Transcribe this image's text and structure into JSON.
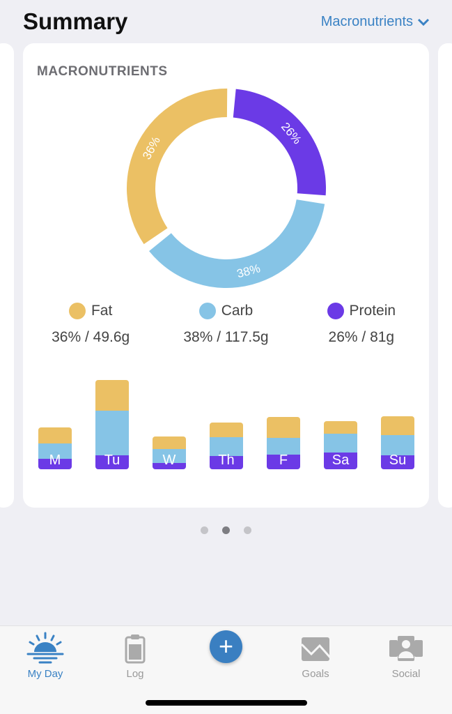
{
  "header": {
    "title": "Summary",
    "selector_label": "Macronutrients"
  },
  "card": {
    "title": "MACRONUTRIENTS"
  },
  "colors": {
    "fat": "#ebc064",
    "carb": "#86c4e6",
    "protein": "#6b3ae6",
    "accent": "#3a82c4"
  },
  "chart_data": {
    "type": "pie",
    "donut": [
      {
        "name": "Protein",
        "percent": 26,
        "label": "26%"
      },
      {
        "name": "Carb",
        "percent": 38,
        "label": "38%"
      },
      {
        "name": "Fat",
        "percent": 36,
        "label": "36%"
      }
    ],
    "weekly_stacked_bar": {
      "type": "bar",
      "categories": [
        "M",
        "Tu",
        "W",
        "Th",
        "F",
        "Sa",
        "Su"
      ],
      "series": [
        {
          "name": "Protein",
          "values": [
            15,
            20,
            9,
            19,
            21,
            24,
            20
          ]
        },
        {
          "name": "Carb",
          "values": [
            22,
            64,
            20,
            27,
            24,
            27,
            29
          ]
        },
        {
          "name": "Fat",
          "values": [
            23,
            44,
            18,
            21,
            30,
            18,
            27
          ]
        }
      ]
    }
  },
  "legend": [
    {
      "name": "Fat",
      "value": "36% / 49.6g"
    },
    {
      "name": "Carb",
      "value": "38% / 117.5g"
    },
    {
      "name": "Protein",
      "value": "26% / 81g"
    }
  ],
  "pager": {
    "count": 3,
    "active": 1
  },
  "tabs": [
    {
      "label": "My Day",
      "icon": "sunrise-icon"
    },
    {
      "label": "Log",
      "icon": "clipboard-icon"
    },
    {
      "label": "",
      "icon": "plus-icon"
    },
    {
      "label": "Goals",
      "icon": "chart-down-icon"
    },
    {
      "label": "Social",
      "icon": "people-icon"
    }
  ]
}
